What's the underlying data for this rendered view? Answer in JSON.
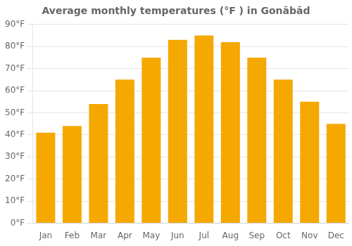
{
  "chart_data": {
    "type": "bar",
    "title": "Average monthly temperatures (°F ) in Gonābād",
    "categories": [
      "Jan",
      "Feb",
      "Mar",
      "Apr",
      "May",
      "Jun",
      "Jul",
      "Aug",
      "Sep",
      "Oct",
      "Nov",
      "Dec"
    ],
    "values": [
      41,
      44,
      54,
      65,
      75,
      83,
      85,
      82,
      75,
      65,
      55,
      45
    ],
    "color": "#F5A800",
    "ylim": [
      0,
      90
    ],
    "yticks": [
      {
        "value": 0,
        "label": "0°F"
      },
      {
        "value": 10,
        "label": "10°F"
      },
      {
        "value": 20,
        "label": "20°F"
      },
      {
        "value": 30,
        "label": "30°F"
      },
      {
        "value": 40,
        "label": "40°F"
      },
      {
        "value": 50,
        "label": "50°F"
      },
      {
        "value": 60,
        "label": "60°F"
      },
      {
        "value": 70,
        "label": "70°F"
      },
      {
        "value": 80,
        "label": "80°F"
      },
      {
        "value": 90,
        "label": "90°F"
      }
    ],
    "grid": true
  }
}
